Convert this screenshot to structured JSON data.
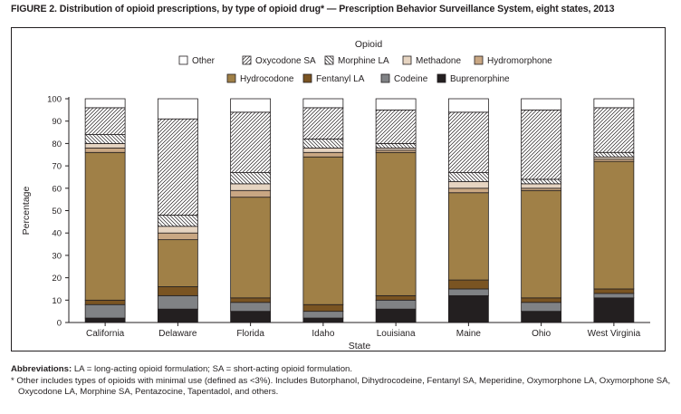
{
  "figure": {
    "title": "FIGURE 2. Distribution of opioid prescriptions, by type of opioid drug* — Prescription Behavior Surveillance System, eight states, 2013"
  },
  "footnotes": {
    "abbreviations_label": "Abbreviations:",
    "abbreviations_text": "LA = long-acting opioid formulation; SA = short-acting opioid formulation.",
    "other_note_line1": "* Other includes types of opioids with minimal use (defined as <3%). Includes Butorphanol, Dihydrocodeine, Fentanyl SA, Meperidine, Oxymorphone LA, Oxymorphone SA,",
    "other_note_line2": "Oxycodone LA, Morphine SA, Pentazocine, Tapentadol, and others."
  },
  "chart_data": {
    "type": "bar",
    "stacked": true,
    "legend_title": "Opioid",
    "xlabel": "State",
    "ylabel": "Percentage",
    "ylim": [
      0,
      100
    ],
    "yticks": [
      0,
      10,
      20,
      30,
      40,
      50,
      60,
      70,
      80,
      90,
      100
    ],
    "categories": [
      "California",
      "Delaware",
      "Florida",
      "Idaho",
      "Louisiana",
      "Maine",
      "Ohio",
      "West Virginia"
    ],
    "series": [
      {
        "name": "Buprenorphine",
        "color": "#231f20",
        "pattern": "solid",
        "values": [
          2,
          6,
          5,
          2,
          6,
          12,
          5,
          11
        ]
      },
      {
        "name": "Codeine",
        "color": "#808285",
        "pattern": "solid",
        "values": [
          6,
          6,
          4,
          3,
          4,
          3,
          4,
          2
        ]
      },
      {
        "name": "Fentanyl LA",
        "color": "#7a5422",
        "pattern": "solid",
        "values": [
          2,
          4,
          2,
          3,
          2,
          4,
          2,
          2
        ]
      },
      {
        "name": "Hydrocodone",
        "color": "#a08047",
        "pattern": "solid",
        "values": [
          66,
          21,
          45,
          66,
          64,
          39,
          48,
          57
        ]
      },
      {
        "name": "Hydromorphone",
        "color": "#c9a783",
        "pattern": "solid",
        "values": [
          2,
          3,
          3,
          2,
          1,
          2,
          1,
          1
        ]
      },
      {
        "name": "Methadone",
        "color": "#e6d4c1",
        "pattern": "solid",
        "values": [
          2,
          3,
          3,
          2,
          1,
          3,
          2,
          1
        ]
      },
      {
        "name": "Morphine LA",
        "color": "#ffffff",
        "pattern": "backslash",
        "values": [
          4,
          5,
          5,
          4,
          2,
          4,
          2,
          2
        ]
      },
      {
        "name": "Oxycodone SA",
        "color": "#ffffff",
        "pattern": "slash",
        "values": [
          12,
          43,
          27,
          14,
          15,
          27,
          31,
          20
        ]
      },
      {
        "name": "Other",
        "color": "#ffffff",
        "pattern": "solid",
        "values": [
          4,
          9,
          6,
          4,
          5,
          6,
          5,
          4
        ]
      }
    ],
    "legend_order": [
      [
        "Other",
        "Oxycodone SA",
        "Morphine LA",
        "Methadone",
        "Hydromorphone"
      ],
      [
        "Hydrocodone",
        "Fentanyl LA",
        "Codeine",
        "Buprenorphine"
      ]
    ],
    "legend_position": "top",
    "grid": false
  }
}
